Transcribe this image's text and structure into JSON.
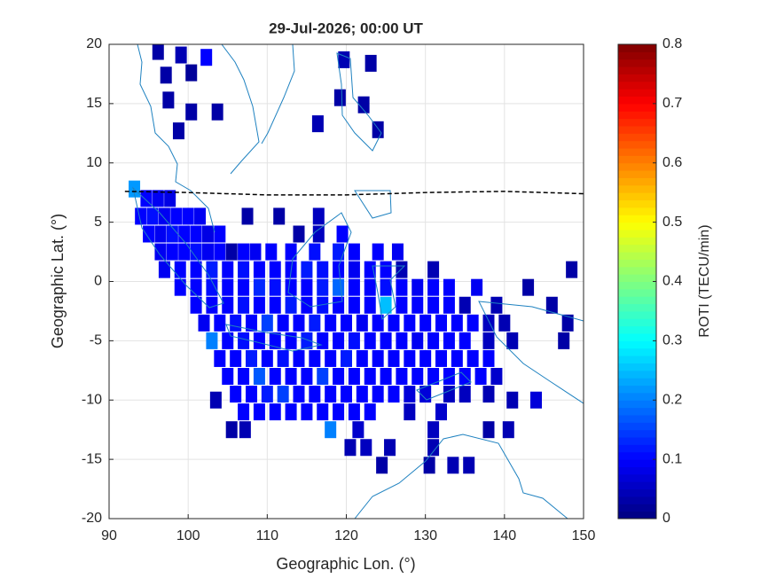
{
  "chart_data": {
    "type": "map",
    "title": "29-Jul-2026; 00:00 UT",
    "xlabel": "Geographic Lon. (°)",
    "ylabel": "Geographic Lat. (°)",
    "colorbar_label": "ROTI (TECU/min)",
    "colormap": "jet",
    "grid": true,
    "xlim": [
      90,
      150
    ],
    "ylim": [
      -20,
      20
    ],
    "xticks": [
      90,
      100,
      110,
      120,
      130,
      140,
      150
    ],
    "yticks": [
      -20,
      -15,
      -10,
      -5,
      0,
      5,
      10,
      15,
      20
    ],
    "clim": [
      0,
      0.8
    ],
    "cticks": [
      0,
      0.1,
      0.2,
      0.3,
      0.4,
      0.5,
      0.6,
      0.7,
      0.8
    ],
    "x": [
      96.2,
      99.1,
      102.3,
      97.2,
      100.4,
      97.5,
      100.4,
      103.7,
      98.8,
      119.7,
      123.1,
      119.2,
      122.2,
      116.4,
      124.0,
      93.2,
      94.7,
      96.2,
      97.7,
      94,
      95.5,
      97,
      98.5,
      100,
      101.5,
      107.5,
      111.5,
      116.5,
      95,
      96.5,
      98,
      99.5,
      101,
      102.5,
      104,
      114,
      116.5,
      119.5,
      96.5,
      98,
      99.5,
      101,
      102.5,
      104,
      105.5,
      107,
      108.5,
      110.5,
      113,
      116,
      119,
      121,
      124,
      126.5,
      97,
      99,
      101,
      103,
      105,
      107,
      109,
      111,
      113,
      115,
      117,
      119,
      121,
      123,
      125,
      127,
      131,
      148.5,
      99,
      101,
      103,
      105,
      107,
      109,
      111,
      113,
      115,
      117,
      119,
      121,
      123,
      125,
      127,
      129,
      131,
      133,
      136.5,
      143,
      101,
      103,
      105,
      107,
      109,
      111,
      113,
      115,
      117,
      119,
      121,
      123,
      125,
      127,
      129,
      131,
      133,
      135,
      139,
      146,
      102,
      104,
      106,
      108,
      110,
      112,
      114,
      116,
      118,
      120,
      122,
      124,
      126,
      128,
      130,
      132,
      134,
      136,
      138,
      140,
      148,
      103,
      105,
      107,
      109,
      111,
      113,
      115,
      117,
      119,
      121,
      123,
      125,
      127,
      129,
      131,
      133,
      135,
      138,
      141,
      147.5,
      104,
      106,
      108,
      110,
      112,
      114,
      116,
      118,
      120,
      122,
      124,
      126,
      128,
      130,
      132,
      134,
      136,
      138,
      105,
      107,
      109,
      111,
      113,
      115,
      117,
      119,
      121,
      123,
      125,
      127,
      129,
      131,
      133,
      135,
      137,
      139,
      106,
      108,
      110,
      112,
      114,
      116,
      118,
      120,
      122,
      124,
      126,
      128,
      130,
      133,
      135,
      138,
      107,
      109,
      111,
      113,
      115,
      117,
      119,
      121,
      123,
      128,
      132,
      105.5,
      107.2,
      118,
      121.5,
      131,
      138,
      140.5,
      103.5,
      141,
      144,
      120.5,
      122.5,
      125.5,
      131,
      124.5,
      130.5,
      133.5,
      135.5
    ],
    "y": [
      19.4,
      19.1,
      18.9,
      17.4,
      17.6,
      15.3,
      14.3,
      14.3,
      12.7,
      18.7,
      18.4,
      15.5,
      14.9,
      13.3,
      12.8,
      7.8,
      7,
      7,
      7,
      5.5,
      5.5,
      5.5,
      5.5,
      5.5,
      5.5,
      5.5,
      5.5,
      5.5,
      4,
      4,
      4,
      4,
      4,
      4,
      4,
      4,
      4,
      4,
      2.5,
      2.5,
      2.5,
      2.5,
      2.5,
      2.5,
      2.5,
      2.5,
      2.5,
      2.5,
      2.5,
      2.5,
      2.5,
      2.5,
      2.5,
      2.5,
      1,
      1,
      1,
      1,
      1,
      1,
      1,
      1,
      1,
      1,
      1,
      1,
      1,
      1,
      1,
      1,
      1,
      1,
      -0.5,
      -0.5,
      -0.5,
      -0.5,
      -0.5,
      -0.5,
      -0.5,
      -0.5,
      -0.5,
      -0.5,
      -0.5,
      -0.5,
      -0.5,
      -0.5,
      -0.5,
      -0.5,
      -0.5,
      -0.5,
      -0.5,
      -0.5,
      -2,
      -2,
      -2,
      -2,
      -2,
      -2,
      -2,
      -2,
      -2,
      -2,
      -2,
      -2,
      -2,
      -2,
      -2,
      -2,
      -2,
      -2,
      -2,
      -2,
      -3.5,
      -3.5,
      -3.5,
      -3.5,
      -3.5,
      -3.5,
      -3.5,
      -3.5,
      -3.5,
      -3.5,
      -3.5,
      -3.5,
      -3.5,
      -3.5,
      -3.5,
      -3.5,
      -3.5,
      -3.5,
      -3.5,
      -3.5,
      -3.5,
      -5,
      -5,
      -5,
      -5,
      -5,
      -5,
      -5,
      -5,
      -5,
      -5,
      -5,
      -5,
      -5,
      -5,
      -5,
      -5,
      -5,
      -5,
      -5,
      -5,
      -6.5,
      -6.5,
      -6.5,
      -6.5,
      -6.5,
      -6.5,
      -6.5,
      -6.5,
      -6.5,
      -6.5,
      -6.5,
      -6.5,
      -6.5,
      -6.5,
      -6.5,
      -6.5,
      -6.5,
      -6.5,
      -8,
      -8,
      -8,
      -8,
      -8,
      -8,
      -8,
      -8,
      -8,
      -8,
      -8,
      -8,
      -8,
      -8,
      -8,
      -8,
      -8,
      -8,
      -9.5,
      -9.5,
      -9.5,
      -9.5,
      -9.5,
      -9.5,
      -9.5,
      -9.5,
      -9.5,
      -9.5,
      -9.5,
      -9.5,
      -9.5,
      -9.5,
      -9.5,
      -9.5,
      -11,
      -11,
      -11,
      -11,
      -11,
      -11,
      -11,
      -11,
      -11,
      -11,
      -11,
      -12.5,
      -12.5,
      -12.5,
      -12.5,
      -12.5,
      -12.5,
      -12.5,
      -10,
      -10,
      -10,
      -14,
      -14,
      -14,
      -14,
      -15.5,
      -15.5,
      -15.5,
      -15.5
    ],
    "values": [
      0.03,
      0.04,
      0.1,
      0.03,
      0.02,
      0.03,
      0.03,
      0.03,
      0.03,
      0.04,
      0.03,
      0.03,
      0.03,
      0.04,
      0.03,
      0.22,
      0.1,
      0.09,
      0.08,
      0.1,
      0.11,
      0.09,
      0.1,
      0.1,
      0.09,
      0.03,
      0.03,
      0.05,
      0.1,
      0.09,
      0.11,
      0.1,
      0.1,
      0.08,
      0.1,
      0.03,
      0.05,
      0.1,
      0.09,
      0.1,
      0.1,
      0.11,
      0.09,
      0.1,
      0.03,
      0.1,
      0.09,
      0.1,
      0.1,
      0.11,
      0.12,
      0.1,
      0.1,
      0.09,
      0.09,
      0.1,
      0.1,
      0.12,
      0.1,
      0.11,
      0.1,
      0.1,
      0.1,
      0.12,
      0.11,
      0.1,
      0.09,
      0.1,
      0.1,
      0.04,
      0.04,
      0.03,
      0.1,
      0.1,
      0.11,
      0.1,
      0.1,
      0.13,
      0.11,
      0.1,
      0.1,
      0.12,
      0.18,
      0.1,
      0.1,
      0.11,
      0.1,
      0.09,
      0.1,
      0.1,
      0.09,
      0.03,
      0.1,
      0.1,
      0.1,
      0.11,
      0.1,
      0.1,
      0.12,
      0.1,
      0.11,
      0.1,
      0.1,
      0.1,
      0.25,
      0.1,
      0.1,
      0.1,
      0.1,
      0.04,
      0.04,
      0.03,
      0.09,
      0.1,
      0.11,
      0.1,
      0.15,
      0.1,
      0.1,
      0.12,
      0.1,
      0.1,
      0.09,
      0.1,
      0.1,
      0.1,
      0.1,
      0.1,
      0.1,
      0.1,
      0.05,
      0.04,
      0.03,
      0.2,
      0.1,
      0.11,
      0.1,
      0.1,
      0.1,
      0.12,
      0.1,
      0.1,
      0.11,
      0.1,
      0.1,
      0.1,
      0.09,
      0.1,
      0.1,
      0.1,
      0.05,
      0.04,
      0.03,
      0.1,
      0.1,
      0.12,
      0.1,
      0.11,
      0.1,
      0.1,
      0.1,
      0.12,
      0.1,
      0.1,
      0.1,
      0.1,
      0.1,
      0.1,
      0.1,
      0.1,
      0.1,
      0.1,
      0.1,
      0.17,
      0.1,
      0.1,
      0.1,
      0.15,
      0.1,
      0.1,
      0.1,
      0.1,
      0.1,
      0.1,
      0.1,
      0.1,
      0.1,
      0.1,
      0.06,
      0.1,
      0.1,
      0.12,
      0.15,
      0.1,
      0.1,
      0.1,
      0.1,
      0.1,
      0.1,
      0.1,
      0.07,
      0.07,
      0.05,
      0.05,
      0.04,
      0.1,
      0.1,
      0.1,
      0.1,
      0.1,
      0.1,
      0.1,
      0.1,
      0.1,
      0.05,
      0.06,
      0.03,
      0.04,
      0.2,
      0.06,
      0.05,
      0.03,
      0.04,
      0.04,
      0.04,
      0.07,
      0.04,
      0.05,
      0.04,
      0.04,
      0.03,
      0.03,
      0.04,
      0.04
    ],
    "lines": [
      {
        "x": [
          92,
          100,
          110,
          120,
          130,
          140,
          150
        ],
        "y": [
          7.6,
          7.5,
          7.3,
          7.3,
          7.5,
          7.6,
          7.4
        ],
        "color": "#000000",
        "dash": true
      }
    ]
  }
}
